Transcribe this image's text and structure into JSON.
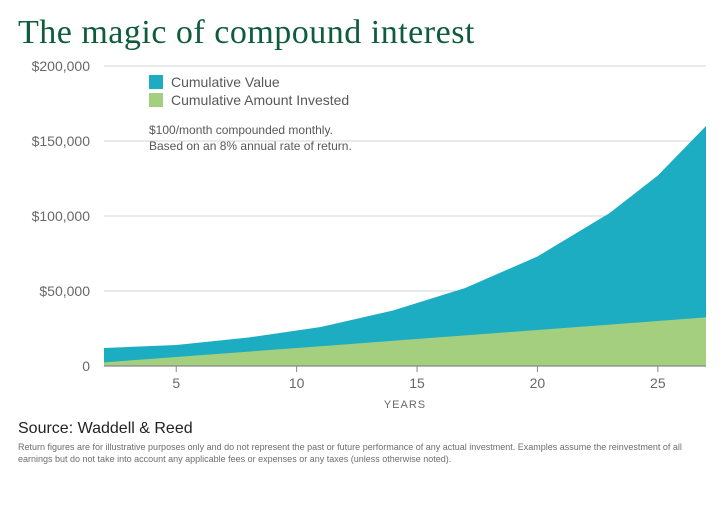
{
  "title": "The magic of compound interest",
  "title_color": "#0e5c3b",
  "title_fontsize": 34,
  "chart": {
    "type": "area",
    "xlabel": "YEARS",
    "xlim": [
      2,
      27
    ],
    "ylim": [
      0,
      200000
    ],
    "yticks": [
      0,
      50000,
      100000,
      150000,
      200000
    ],
    "ytick_labels": [
      "0",
      "$50,000",
      "$100,000",
      "$150,000",
      "$200,000"
    ],
    "xticks": [
      5,
      10,
      15,
      20,
      25
    ],
    "xtick_labels": [
      "5",
      "10",
      "15",
      "20",
      "25"
    ],
    "grid_color": "#d5d5d5",
    "axis_color": "#888888",
    "background_color": "#ffffff",
    "label_fontsize": 14,
    "label_color": "#686868",
    "series": [
      {
        "name": "Cumulative Value",
        "color": "#1dadc2",
        "x": [
          2,
          5,
          8,
          11,
          14,
          17,
          20,
          23,
          25,
          27
        ],
        "y": [
          12000,
          14000,
          19000,
          26000,
          37000,
          52000,
          73000,
          102000,
          127000,
          160000
        ]
      },
      {
        "name": "Cumulative Amount Invested",
        "color": "#a4cf7e",
        "x": [
          2,
          5,
          8,
          11,
          14,
          17,
          20,
          23,
          25,
          27
        ],
        "y": [
          2400,
          6000,
          9600,
          13200,
          16800,
          20400,
          24000,
          27600,
          30000,
          32400
        ]
      }
    ],
    "legend": {
      "items": [
        "Cumulative Value",
        "Cumulative Amount Invested"
      ],
      "colors": [
        "#1dadc2",
        "#a4cf7e"
      ],
      "fontsize": 14
    },
    "note_line1": "$100/month compounded monthly.",
    "note_line2": "Based on an 8% annual rate of return.",
    "note_fontsize": 12
  },
  "source_label": "Source:  Waddell & Reed",
  "disclaimer": "Return figures are for illustrative purposes only and do not represent the past or future performance of any actual investment. Examples assume the reinvestment of all earnings but do not take into account any applicable fees or expenses or any taxes (unless otherwise noted)."
}
